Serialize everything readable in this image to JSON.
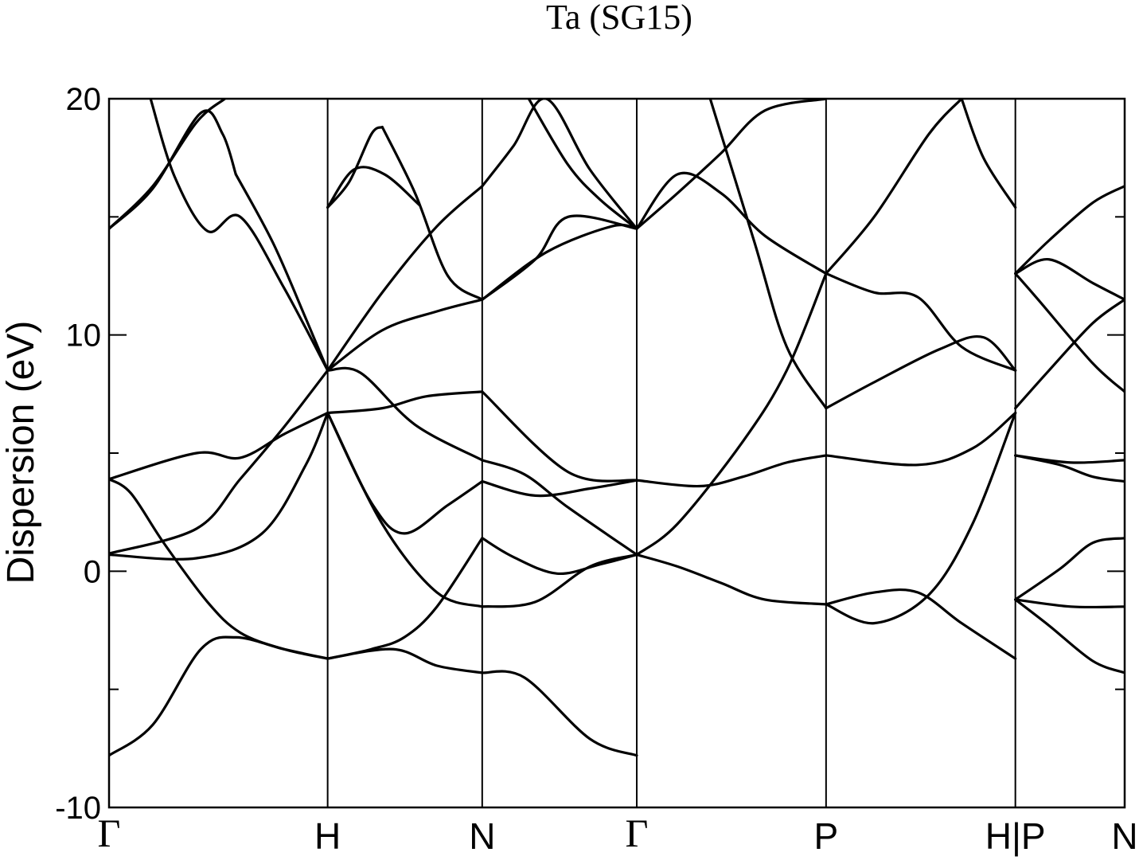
{
  "chart_data": {
    "type": "line",
    "title": "Ta (SG15)",
    "xlabel": "",
    "ylabel": "Dispersion (eV)",
    "ylim": [
      -10,
      20
    ],
    "y_ticks": [
      -10,
      0,
      10,
      20
    ],
    "y_minor_ticks": [
      -5,
      5,
      15
    ],
    "grid": false,
    "k_path": [
      {
        "label": "Γ",
        "x": 0.0
      },
      {
        "label": "H",
        "x": 1.0
      },
      {
        "label": "N",
        "x": 1.707
      },
      {
        "label": "Γ",
        "x": 2.414
      },
      {
        "label": "P",
        "x": 3.28
      },
      {
        "label": "H|P",
        "x": 4.146
      },
      {
        "label": "N",
        "x": 4.646
      }
    ],
    "xlim": [
      0,
      4.646
    ],
    "path_break_at": 4.146,
    "series": [
      {
        "x": [
          0,
          0.2,
          0.42,
          0.58,
          0.8,
          1.0
        ],
        "values": [
          -7.8,
          -6.5,
          -3.3,
          -2.8,
          -3.3,
          -3.7
        ]
      },
      {
        "x": [
          0,
          0.4,
          0.7,
          0.9,
          1.0
        ],
        "values": [
          0.7,
          0.55,
          1.6,
          4.5,
          6.7
        ]
      },
      {
        "x": [
          0,
          0.1,
          0.25,
          0.45,
          0.6,
          0.8,
          1.0
        ],
        "values": [
          3.9,
          3.3,
          1.2,
          -1.3,
          -2.6,
          -3.3,
          -3.7
        ]
      },
      {
        "x": [
          0,
          0.4,
          0.6,
          0.8,
          1.0
        ],
        "values": [
          0.75,
          1.8,
          3.9,
          6.1,
          8.5
        ]
      },
      {
        "x": [
          0,
          0.4,
          0.6,
          0.8,
          1.0
        ],
        "values": [
          3.9,
          5.0,
          4.8,
          5.8,
          6.7
        ]
      },
      {
        "x": [
          0,
          0.2,
          0.42,
          0.52,
          0.58
        ],
        "values": [
          14.5,
          16.2,
          19.4,
          18.5,
          16.8
        ]
      },
      {
        "x": [
          0,
          0.2,
          0.4,
          0.53
        ],
        "values": [
          14.5,
          16.3,
          19.0,
          20.0
        ]
      },
      {
        "x": [
          0.19,
          0.3,
          0.45,
          0.6,
          0.8,
          1.0
        ],
        "values": [
          20.0,
          16.7,
          14.4,
          15.0,
          12.0,
          8.5
        ]
      },
      {
        "x": [
          0.58,
          0.75,
          0.9,
          1.0
        ],
        "values": [
          16.8,
          13.9,
          10.7,
          8.5
        ]
      },
      {
        "x": [
          1.0,
          1.12,
          1.26,
          1.42
        ],
        "values": [
          15.4,
          17.0,
          16.8,
          15.5
        ]
      },
      {
        "x": [
          1.0,
          1.1,
          1.2,
          1.25
        ],
        "values": [
          15.4,
          16.5,
          18.5,
          18.8
        ]
      },
      {
        "x": [
          1.25,
          1.4,
          1.55,
          1.707
        ],
        "values": [
          18.8,
          16.0,
          12.5,
          11.5
        ]
      },
      {
        "x": [
          1.0,
          1.25,
          1.5,
          1.707
        ],
        "values": [
          8.5,
          11.8,
          14.6,
          16.3
        ]
      },
      {
        "x": [
          1.0,
          1.25,
          1.5,
          1.707
        ],
        "values": [
          8.5,
          10.2,
          11.0,
          11.5
        ]
      },
      {
        "x": [
          1.0,
          1.25,
          1.45,
          1.707
        ],
        "values": [
          6.7,
          6.9,
          7.4,
          7.6
        ]
      },
      {
        "x": [
          1.0,
          1.15,
          1.4,
          1.707
        ],
        "values": [
          8.5,
          8.4,
          6.2,
          4.7
        ]
      },
      {
        "x": [
          1.0,
          1.2,
          1.35,
          1.55,
          1.707
        ],
        "values": [
          6.7,
          2.9,
          1.6,
          2.8,
          3.8
        ]
      },
      {
        "x": [
          1.0,
          1.2,
          1.35,
          1.5,
          1.707
        ],
        "values": [
          -3.7,
          -3.3,
          -2.8,
          -1.5,
          1.4
        ]
      },
      {
        "x": [
          1.0,
          1.25,
          1.5,
          1.707
        ],
        "values": [
          6.7,
          2.0,
          -0.9,
          -1.5
        ]
      },
      {
        "x": [
          1.0,
          1.3,
          1.5,
          1.707
        ],
        "values": [
          -3.7,
          -3.3,
          -4.0,
          -4.3
        ]
      },
      {
        "x": [
          1.707,
          1.9,
          2.2,
          2.414
        ],
        "values": [
          -4.3,
          -4.5,
          -7.1,
          -7.8
        ]
      },
      {
        "x": [
          1.707,
          1.95,
          2.2,
          2.414
        ],
        "values": [
          -1.5,
          -1.3,
          0.2,
          0.7
        ]
      },
      {
        "x": [
          1.707,
          1.85,
          2.05,
          2.25,
          2.414
        ],
        "values": [
          1.4,
          0.6,
          -0.1,
          0.3,
          0.7
        ]
      },
      {
        "x": [
          1.707,
          1.95,
          2.2,
          2.414
        ],
        "values": [
          3.8,
          3.2,
          3.5,
          3.85
        ]
      },
      {
        "x": [
          1.707,
          1.9,
          2.1,
          2.414
        ],
        "values": [
          4.7,
          4.1,
          2.7,
          0.7
        ]
      },
      {
        "x": [
          1.707,
          2.1,
          2.414
        ],
        "values": [
          7.6,
          4.2,
          3.85
        ]
      },
      {
        "x": [
          1.707,
          2.0,
          2.3,
          2.414
        ],
        "values": [
          11.5,
          13.5,
          14.6,
          14.5
        ]
      },
      {
        "x": [
          1.707,
          1.95,
          2.1,
          2.414
        ],
        "values": [
          11.5,
          13.2,
          15.0,
          14.5
        ]
      },
      {
        "x": [
          1.707,
          1.85,
          2.0,
          2.2,
          2.414
        ],
        "values": [
          16.3,
          18.0,
          20.0,
          17.0,
          14.5
        ]
      },
      {
        "x": [
          1.92,
          2.1,
          2.25,
          2.414
        ],
        "values": [
          20.0,
          17.2,
          15.7,
          14.5
        ]
      },
      {
        "x": [
          2.414,
          2.6,
          2.8,
          3.0,
          3.28
        ],
        "values": [
          0.7,
          0.2,
          -0.5,
          -1.2,
          -1.4
        ]
      },
      {
        "x": [
          2.414,
          2.6,
          2.9,
          3.1,
          3.28
        ],
        "values": [
          0.7,
          2.0,
          5.5,
          8.5,
          12.6
        ]
      },
      {
        "x": [
          2.414,
          2.7,
          2.9,
          3.1,
          3.28
        ],
        "values": [
          3.85,
          3.6,
          4.0,
          4.6,
          4.9
        ]
      },
      {
        "x": [
          2.414,
          2.6,
          2.8,
          3.0,
          3.28
        ],
        "values": [
          14.5,
          16.0,
          17.7,
          19.5,
          20.0
        ]
      },
      {
        "x": [
          2.414,
          2.6,
          2.8,
          3.0,
          3.28
        ],
        "values": [
          14.5,
          16.8,
          16.0,
          14.2,
          12.6
        ]
      },
      {
        "x": [
          2.75,
          2.95,
          3.1,
          3.28
        ],
        "values": [
          20.0,
          14.0,
          9.5,
          6.9
        ]
      },
      {
        "x": [
          3.28,
          3.5,
          3.7,
          3.9,
          4.146
        ],
        "values": [
          -1.4,
          -0.9,
          -0.9,
          -2.2,
          -3.7
        ]
      },
      {
        "x": [
          3.28,
          3.5,
          3.75,
          3.95,
          4.146
        ],
        "values": [
          -1.4,
          -2.2,
          -1.0,
          2.0,
          6.7
        ]
      },
      {
        "x": [
          3.28,
          3.7,
          3.95,
          4.146
        ],
        "values": [
          4.9,
          4.5,
          5.2,
          6.7
        ]
      },
      {
        "x": [
          3.28,
          3.5,
          3.8,
          4.0,
          4.146
        ],
        "values": [
          6.9,
          8.0,
          9.4,
          9.9,
          8.5
        ]
      },
      {
        "x": [
          3.28,
          3.5,
          3.7,
          3.9,
          4.146
        ],
        "values": [
          12.6,
          11.8,
          11.6,
          9.5,
          8.5
        ]
      },
      {
        "x": [
          3.28,
          3.5,
          3.75,
          3.9
        ],
        "values": [
          12.6,
          15.0,
          18.5,
          20.0
        ]
      },
      {
        "x": [
          3.9,
          4.0,
          4.146
        ],
        "values": [
          20.0,
          17.5,
          15.4
        ]
      },
      {
        "x": [
          4.146,
          4.3,
          4.5,
          4.646
        ],
        "values": [
          -1.2,
          -2.3,
          -3.8,
          -4.3
        ]
      },
      {
        "x": [
          4.146,
          4.4,
          4.646
        ],
        "values": [
          -1.2,
          -1.5,
          -1.5
        ]
      },
      {
        "x": [
          4.146,
          4.35,
          4.5,
          4.646
        ],
        "values": [
          -1.2,
          0.1,
          1.2,
          1.4
        ]
      },
      {
        "x": [
          4.146,
          4.4,
          4.646
        ],
        "values": [
          4.9,
          4.6,
          4.7
        ]
      },
      {
        "x": [
          4.146,
          4.35,
          4.5,
          4.646
        ],
        "values": [
          4.9,
          4.5,
          4.0,
          3.8
        ]
      },
      {
        "x": [
          4.146,
          4.3,
          4.5,
          4.646
        ],
        "values": [
          6.9,
          8.5,
          10.5,
          11.5
        ]
      },
      {
        "x": [
          4.146,
          4.25,
          4.5,
          4.646
        ],
        "values": [
          12.6,
          11.5,
          8.8,
          7.6
        ]
      },
      {
        "x": [
          4.146,
          4.3,
          4.5,
          4.646
        ],
        "values": [
          12.6,
          13.2,
          12.2,
          11.5
        ]
      },
      {
        "x": [
          4.146,
          4.3,
          4.5,
          4.646
        ],
        "values": [
          12.6,
          14.0,
          15.6,
          16.3
        ]
      }
    ]
  }
}
